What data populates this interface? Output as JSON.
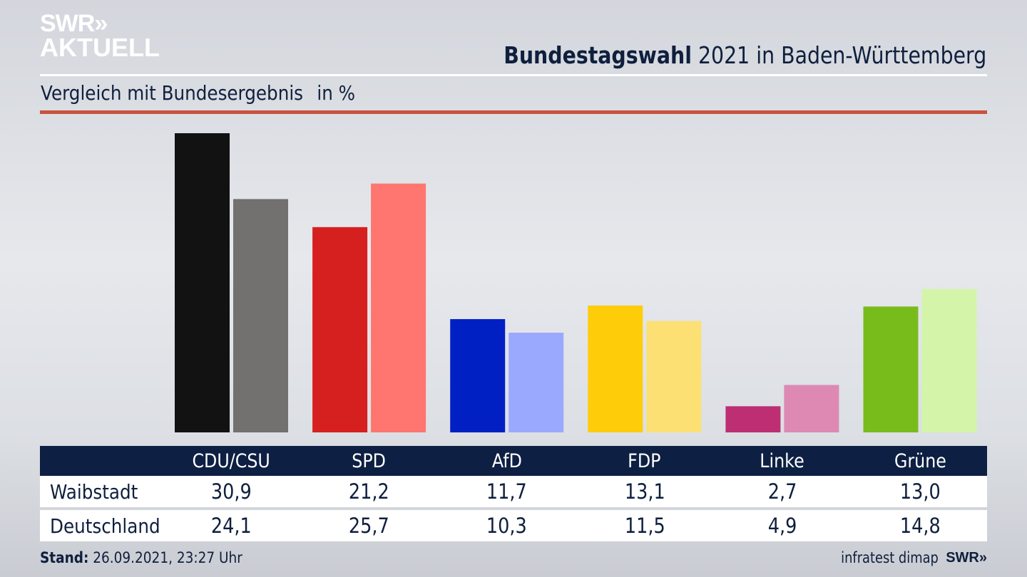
{
  "header": {
    "logo_line1": "SWR",
    "logo_arrows": "»",
    "logo_line2": "AKTUELL",
    "title_bold": "Bundestagswahl",
    "title_rest": " 2021 in Baden-Württemberg",
    "subtitle": "Vergleich mit Bundesergebnis",
    "unit": "in %"
  },
  "colors": {
    "accent_rule": "#c9523f",
    "table_header": "#0d1f42"
  },
  "chart_data": {
    "type": "bar",
    "title": "Bundestagswahl 2021 in Baden-Württemberg",
    "subtitle": "Vergleich mit Bundesergebnis",
    "ylabel": "in %",
    "ylim": [
      0,
      31
    ],
    "grid": false,
    "categories": [
      "CDU/CSU",
      "SPD",
      "AfD",
      "FDP",
      "Linke",
      "Grüne"
    ],
    "series": [
      {
        "name": "Waibstadt",
        "values": [
          30.9,
          21.2,
          11.7,
          13.1,
          2.7,
          13.0
        ],
        "labels": [
          "30,9",
          "21,2",
          "11,7",
          "13,1",
          "2,7",
          "13,0"
        ],
        "colors": [
          "#121212",
          "#d61f1f",
          "#0020c4",
          "#ffcc0a",
          "#bd2f72",
          "#78bc1c"
        ]
      },
      {
        "name": "Deutschland",
        "values": [
          24.1,
          25.7,
          10.3,
          11.5,
          4.9,
          14.8
        ],
        "labels": [
          "24,1",
          "25,7",
          "10,3",
          "11,5",
          "4,9",
          "14,8"
        ],
        "colors": [
          "#72716f",
          "#fe766f",
          "#9aa9fd",
          "#fde073",
          "#dd89b4",
          "#d4f5a9"
        ]
      }
    ]
  },
  "footer": {
    "stand_label": "Stand:",
    "stand_value": " 26.09.2021, 23:27 Uhr",
    "source": "infratest dimap",
    "source_logo": "SWR»"
  }
}
